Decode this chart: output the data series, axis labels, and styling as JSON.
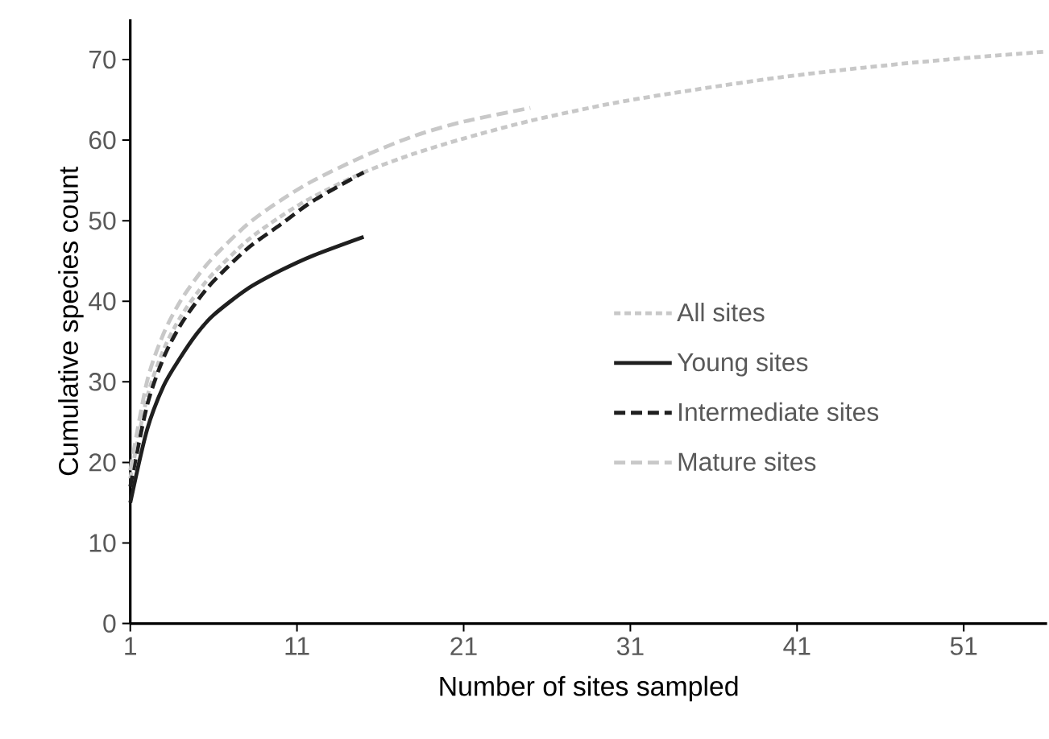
{
  "chart_data": {
    "type": "line",
    "xlabel": "Number of sites sampled",
    "ylabel": "Cumulative species count",
    "xlim": [
      1,
      56
    ],
    "ylim": [
      0,
      75
    ],
    "xticks": [
      1,
      11,
      21,
      31,
      41,
      51
    ],
    "yticks": [
      0,
      10,
      20,
      30,
      40,
      50,
      60,
      70
    ],
    "grid": false,
    "legend": "right",
    "series": [
      {
        "name": "All sites",
        "color": "#c8c8c8",
        "line_style": "dotted",
        "x": [
          1,
          2,
          3,
          4,
          5,
          6,
          8,
          10,
          12,
          15,
          18,
          21,
          25,
          30,
          35,
          40,
          45,
          50,
          56
        ],
        "values": [
          18,
          28,
          34,
          38,
          41,
          43.5,
          47.5,
          50.5,
          53,
          56,
          58.3,
          60.2,
          62.4,
          64.6,
          66.3,
          67.8,
          69,
          70,
          71
        ]
      },
      {
        "name": "Young sites",
        "color": "#1f1f1f",
        "line_style": "solid",
        "x": [
          1,
          2,
          3,
          4,
          5,
          6,
          8,
          10,
          12,
          15
        ],
        "values": [
          15,
          24,
          29.5,
          33,
          36,
          38.3,
          41.5,
          43.8,
          45.7,
          48
        ]
      },
      {
        "name": "Intermediate sites",
        "color": "#1f1f1f",
        "line_style": "dashed",
        "x": [
          1,
          2,
          3,
          4,
          5,
          6,
          8,
          10,
          12,
          15
        ],
        "values": [
          17,
          27,
          33,
          37,
          40,
          42.5,
          46.5,
          49.5,
          52.5,
          56
        ]
      },
      {
        "name": "Mature sites",
        "color": "#c8c8c8",
        "line_style": "dashed",
        "x": [
          1,
          2,
          3,
          4,
          5,
          6,
          8,
          10,
          12,
          15,
          18,
          21,
          25
        ],
        "values": [
          19,
          30,
          36,
          40,
          43,
          45.5,
          49.5,
          52.5,
          55,
          58,
          60.5,
          62.3,
          64
        ]
      }
    ]
  }
}
